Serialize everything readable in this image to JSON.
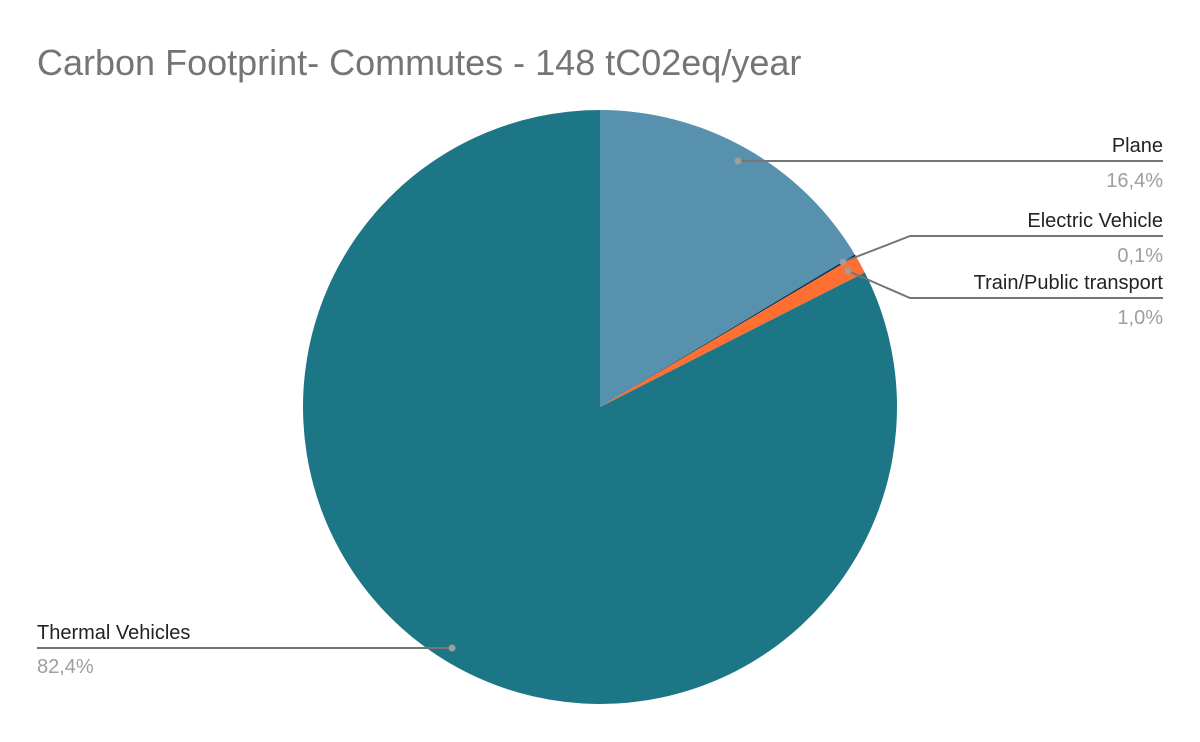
{
  "chart_data": {
    "type": "pie",
    "title": "Carbon Footprint- Commutes - 148 tC02eq/year",
    "slices": [
      {
        "label": "Plane",
        "value": 16.4,
        "display": "16,4%",
        "color": "#5891ad"
      },
      {
        "label": "Electric Vehicle",
        "value": 0.1,
        "display": "0,1%",
        "color": "#0b2f45"
      },
      {
        "label": "Train/Public transport",
        "value": 1.0,
        "display": "1,0%",
        "color": "#ff6f31"
      },
      {
        "label": "Thermal Vehicles",
        "value": 82.4,
        "display": "82,4%",
        "color": "#1c7685"
      }
    ],
    "start_angle": "top, clockwise",
    "legend": "none (leader-line labels)"
  }
}
